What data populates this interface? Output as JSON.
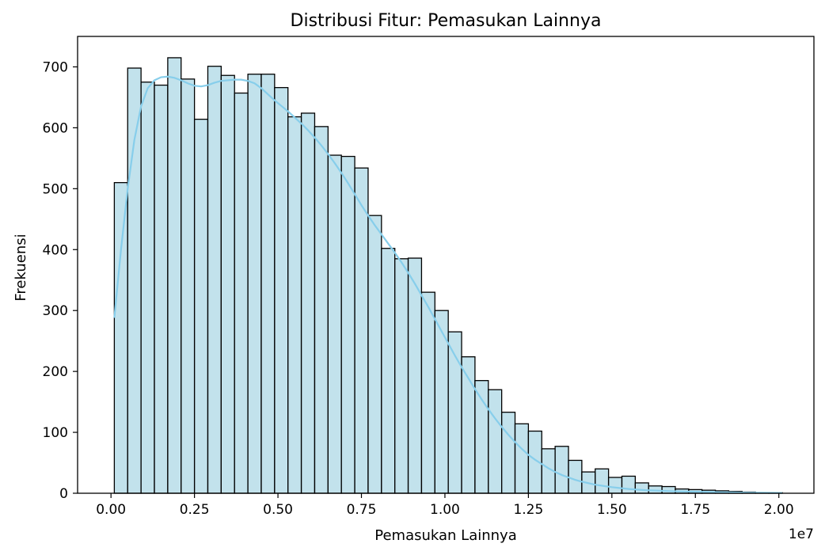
{
  "chart_data": {
    "type": "bar",
    "title": "Distribusi Fitur: Pemasukan Lainnya",
    "xlabel": "Pemasukan Lainnya",
    "ylabel": "Frekuensi",
    "x_offset_text": "1e7",
    "xlim": [
      -0.1,
      2.105
    ],
    "ylim": [
      0,
      750
    ],
    "x_ticks": [
      0.0,
      0.25,
      0.5,
      0.75,
      1.0,
      1.25,
      1.5,
      1.75,
      2.0
    ],
    "x_tick_labels": [
      "0.00",
      "0.25",
      "0.50",
      "0.75",
      "1.00",
      "1.25",
      "1.50",
      "1.75",
      "2.00"
    ],
    "y_ticks": [
      0,
      100,
      200,
      300,
      400,
      500,
      600,
      700
    ],
    "y_tick_labels": [
      "0",
      "100",
      "200",
      "300",
      "400",
      "500",
      "600",
      "700"
    ],
    "bin_start": 0.01,
    "bin_width": 0.04,
    "values": [
      510,
      698,
      675,
      670,
      715,
      680,
      614,
      701,
      686,
      657,
      688,
      688,
      666,
      618,
      624,
      602,
      555,
      553,
      534,
      456,
      402,
      385,
      386,
      330,
      300,
      265,
      224,
      185,
      170,
      133,
      114,
      102,
      73,
      77,
      54,
      35,
      40,
      26,
      28,
      17,
      12,
      11,
      7,
      6,
      5,
      4,
      3,
      2,
      1,
      1
    ],
    "kde": {
      "x": [
        0.01,
        0.03,
        0.05,
        0.07,
        0.09,
        0.11,
        0.13,
        0.15,
        0.17,
        0.19,
        0.21,
        0.23,
        0.25,
        0.27,
        0.29,
        0.31,
        0.33,
        0.35,
        0.37,
        0.39,
        0.41,
        0.43,
        0.45,
        0.47,
        0.49,
        0.51,
        0.53,
        0.55,
        0.57,
        0.59,
        0.61,
        0.63,
        0.65,
        0.67,
        0.69,
        0.71,
        0.73,
        0.75,
        0.77,
        0.79,
        0.81,
        0.83,
        0.85,
        0.87,
        0.89,
        0.91,
        0.93,
        0.95,
        0.97,
        0.99,
        1.01,
        1.03,
        1.05,
        1.07,
        1.09,
        1.11,
        1.13,
        1.15,
        1.17,
        1.19,
        1.21,
        1.23,
        1.25,
        1.27,
        1.29,
        1.31,
        1.33,
        1.35,
        1.37,
        1.39,
        1.41,
        1.45,
        1.5,
        1.55,
        1.6,
        1.65,
        1.7,
        1.75,
        1.8,
        1.85,
        1.9,
        1.95,
        2.01
      ],
      "y": [
        288,
        400,
        500,
        580,
        635,
        665,
        678,
        683,
        684,
        682,
        678,
        673,
        669,
        668,
        670,
        674,
        677,
        678,
        679,
        679,
        677,
        673,
        665,
        655,
        645,
        636,
        627,
        617,
        607,
        596,
        584,
        571,
        557,
        542,
        526,
        509,
        491,
        473,
        456,
        440,
        425,
        410,
        395,
        379,
        362,
        344,
        325,
        306,
        286,
        266,
        246,
        226,
        207,
        189,
        171,
        154,
        138,
        123,
        109,
        96,
        84,
        73,
        63,
        55,
        48,
        41,
        35,
        30,
        26,
        22,
        19,
        14,
        10,
        7,
        5,
        4,
        3,
        2.5,
        2,
        1.5,
        1,
        0.8,
        0.5
      ]
    },
    "colors": {
      "bar_fill": "#add8e6",
      "bar_fill_opacity": 0.75,
      "bar_edge": "#000000",
      "kde_line": "#87ceeb",
      "axes": "#000000",
      "background": "#ffffff"
    },
    "grid": false,
    "legend": "none"
  }
}
